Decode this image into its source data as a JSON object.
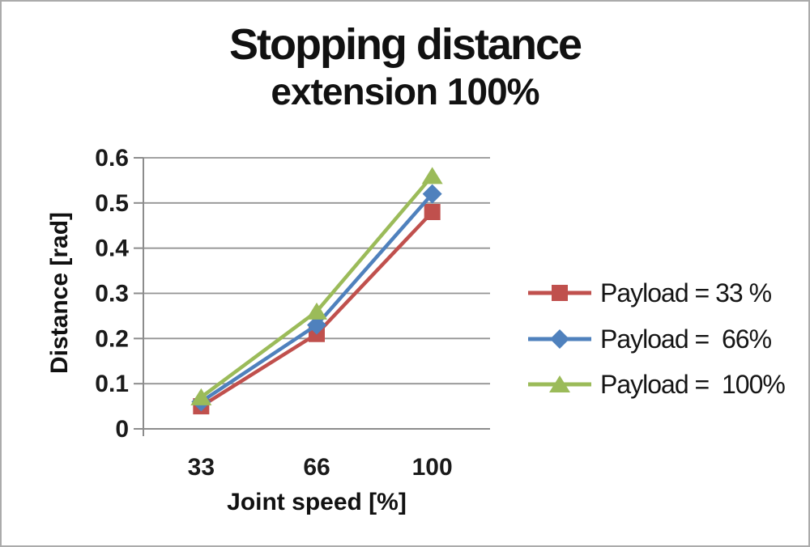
{
  "window": {
    "background": "#ffffff",
    "border_color": "#ababab"
  },
  "chart_data": {
    "type": "line",
    "title_line1": "Stopping distance",
    "title_line2": "extension 100%",
    "xlabel": "Joint speed [%]",
    "ylabel": "Distance [rad]",
    "categories": [
      "33",
      "66",
      "100"
    ],
    "x_values": [
      33,
      66,
      100
    ],
    "ylim": [
      0,
      0.6
    ],
    "yticks": [
      0,
      0.1,
      0.2,
      0.3,
      0.4,
      0.5,
      0.6
    ],
    "ytick_labels": [
      "0",
      "0.1",
      "0.2",
      "0.3",
      "0.4",
      "0.5",
      "0.6"
    ],
    "grid": true,
    "legend_position": "right",
    "series": [
      {
        "name": "Payload = 33 %",
        "marker": "square",
        "color": "#c0504d",
        "values": [
          0.05,
          0.21,
          0.48
        ]
      },
      {
        "name": "Payload =  66%",
        "marker": "diamond",
        "color": "#4f81bd",
        "values": [
          0.06,
          0.23,
          0.52
        ]
      },
      {
        "name": "Payload =  100%",
        "marker": "triangle",
        "color": "#9bbb59",
        "values": [
          0.07,
          0.26,
          0.56
        ]
      }
    ],
    "axis_color": "#8c8c8c",
    "grid_color": "#949494",
    "tick_text_color": "#1a1a1a"
  }
}
